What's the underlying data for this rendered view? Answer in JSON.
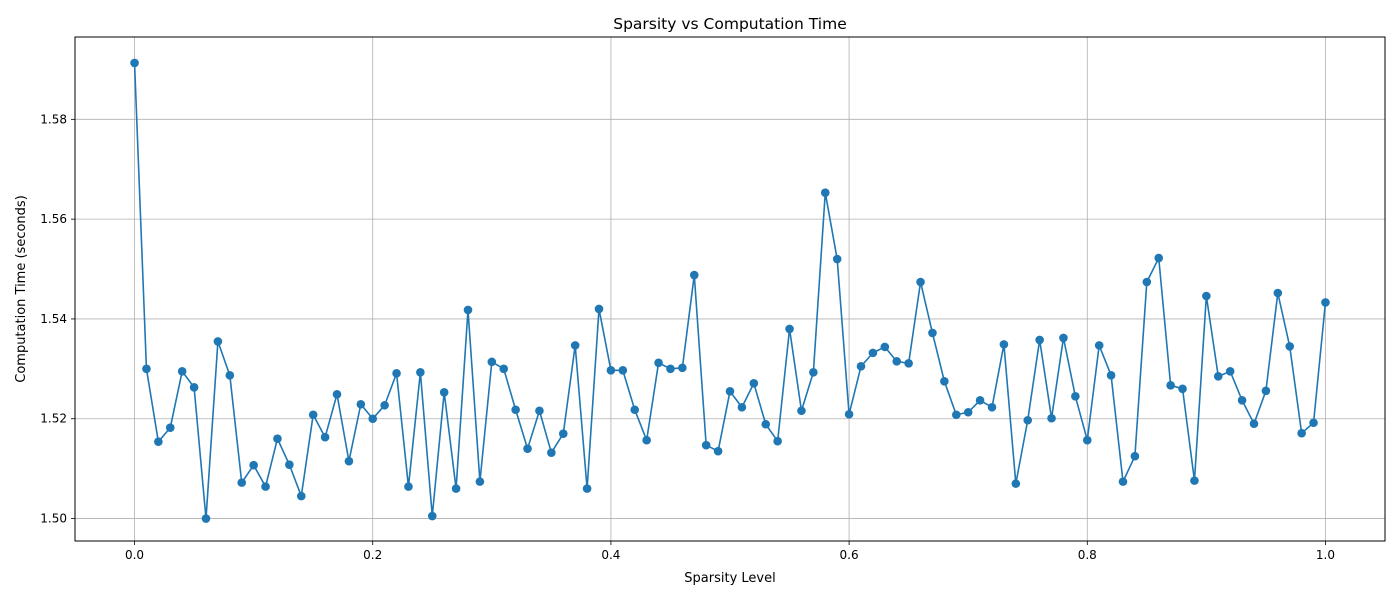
{
  "chart_data": {
    "type": "line",
    "title": "Sparsity vs Computation Time",
    "xlabel": "Sparsity Level",
    "ylabel": "Computation Time (seconds)",
    "xlim": [
      -0.05,
      1.05
    ],
    "ylim": [
      1.4955,
      1.5965
    ],
    "xticks": [
      0.0,
      0.2,
      0.4,
      0.6,
      0.8,
      1.0
    ],
    "xtick_labels": [
      "0.0",
      "0.2",
      "0.4",
      "0.6",
      "0.8",
      "1.0"
    ],
    "yticks": [
      1.5,
      1.52,
      1.54,
      1.56,
      1.58
    ],
    "ytick_labels": [
      "1.50",
      "1.52",
      "1.54",
      "1.56",
      "1.58"
    ],
    "grid": true,
    "marker": "circle",
    "colors": {
      "line": "#1f77b4",
      "grid": "#b0b0b0",
      "axes": "#000000"
    },
    "series": [
      {
        "x": [
          0.0,
          0.01,
          0.02,
          0.03,
          0.04,
          0.05,
          0.06,
          0.07,
          0.08,
          0.09,
          0.1,
          0.11,
          0.12,
          0.13,
          0.14,
          0.15,
          0.16,
          0.17,
          0.18,
          0.19,
          0.2,
          0.21,
          0.22,
          0.23,
          0.24,
          0.25,
          0.26,
          0.27,
          0.28,
          0.29,
          0.3,
          0.31,
          0.32,
          0.33,
          0.34,
          0.35,
          0.36,
          0.37,
          0.38,
          0.39,
          0.4,
          0.41,
          0.42,
          0.43,
          0.44,
          0.45,
          0.46,
          0.47,
          0.48,
          0.49,
          0.5,
          0.51,
          0.52,
          0.53,
          0.54,
          0.55,
          0.56,
          0.57,
          0.58,
          0.59,
          0.6,
          0.61,
          0.62,
          0.63,
          0.64,
          0.65,
          0.66,
          0.67,
          0.68,
          0.69,
          0.7,
          0.71,
          0.72,
          0.73,
          0.74,
          0.75,
          0.76,
          0.77,
          0.78,
          0.79,
          0.8,
          0.81,
          0.82,
          0.83,
          0.84,
          0.85,
          0.86,
          0.87,
          0.88,
          0.89,
          0.9,
          0.91,
          0.92,
          0.93,
          0.94,
          0.95,
          0.96,
          0.97,
          0.98,
          0.99,
          1.0
        ],
        "values": [
          1.5913,
          1.53,
          1.5154,
          1.5182,
          1.5295,
          1.5263,
          1.5,
          1.5355,
          1.5287,
          1.5072,
          1.5107,
          1.5064,
          1.516,
          1.5108,
          1.5045,
          1.5208,
          1.5163,
          1.5249,
          1.5115,
          1.5229,
          1.52,
          1.5227,
          1.5291,
          1.5064,
          1.5293,
          1.5005,
          1.5253,
          1.506,
          1.5418,
          1.5074,
          1.5314,
          1.53,
          1.5218,
          1.514,
          1.5216,
          1.5132,
          1.517,
          1.5347,
          1.506,
          1.542,
          1.5297,
          1.5297,
          1.5218,
          1.5157,
          1.5312,
          1.53,
          1.5302,
          1.5488,
          1.5147,
          1.5135,
          1.5255,
          1.5223,
          1.5271,
          1.5189,
          1.5155,
          1.538,
          1.5216,
          1.5293,
          1.5653,
          1.552,
          1.5209,
          1.5305,
          1.5332,
          1.5344,
          1.5315,
          1.5311,
          1.5474,
          1.5372,
          1.5275,
          1.5208,
          1.5213,
          1.5237,
          1.5223,
          1.5349,
          1.507,
          1.5197,
          1.5358,
          1.5201,
          1.5362,
          1.5245,
          1.5157,
          1.5347,
          1.5287,
          1.5074,
          1.5125,
          1.5474,
          1.5522,
          1.5267,
          1.526,
          1.5076,
          1.5446,
          1.5285,
          1.5295,
          1.5237,
          1.519,
          1.5256,
          1.5452,
          1.5345,
          1.5171,
          1.5192,
          1.5433
        ]
      }
    ]
  }
}
